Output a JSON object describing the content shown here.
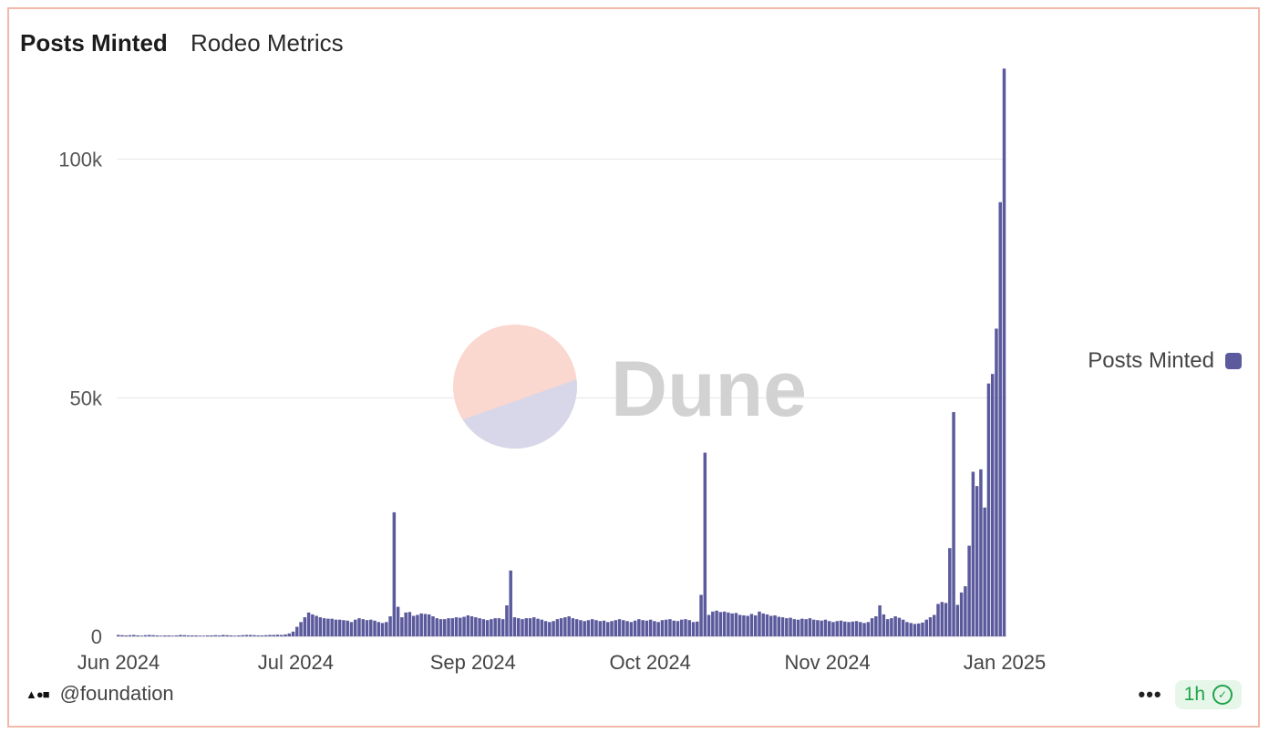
{
  "header": {
    "title": "Posts Minted",
    "subtitle": "Rodeo Metrics"
  },
  "legend": {
    "label": "Posts Minted",
    "color": "#5b5a9d"
  },
  "watermark": {
    "text": "Dune"
  },
  "footer": {
    "author": "@foundation",
    "menu_label": "•••",
    "refresh_label": "1h",
    "logo_icon": "dune-logo-icon"
  },
  "chart_data": {
    "type": "bar",
    "ylim": [
      0,
      120000
    ],
    "y_ticks": [
      0,
      50000,
      100000
    ],
    "y_tick_labels": [
      "0",
      "50k",
      "100k"
    ],
    "x_tick_labels": [
      "Jun 2024",
      "Jul 2024",
      "Sep 2024",
      "Oct 2024",
      "Nov 2024",
      "Jan 2025"
    ],
    "grid": true,
    "legend_position": "right",
    "series": [
      {
        "name": "Posts Minted",
        "color": "#5b5a9d",
        "values": [
          300,
          250,
          200,
          250,
          300,
          200,
          150,
          250,
          300,
          250,
          200,
          150,
          200,
          200,
          150,
          200,
          300,
          250,
          200,
          200,
          200,
          150,
          150,
          200,
          200,
          250,
          200,
          300,
          250,
          200,
          150,
          200,
          250,
          300,
          300,
          250,
          200,
          200,
          250,
          300,
          300,
          350,
          300,
          400,
          600,
          1000,
          2000,
          3000,
          4000,
          5000,
          4600,
          4300,
          4000,
          3800,
          3700,
          3700,
          3500,
          3500,
          3400,
          3300,
          3000,
          3500,
          3800,
          3600,
          3400,
          3500,
          3300,
          3000,
          2800,
          3000,
          4200,
          26000,
          6200,
          4000,
          5000,
          5100,
          4300,
          4500,
          4800,
          4700,
          4600,
          4200,
          3800,
          3600,
          3600,
          3800,
          3800,
          4000,
          3900,
          4100,
          4400,
          4200,
          4000,
          3800,
          3600,
          3400,
          3600,
          3800,
          3800,
          3600,
          6500,
          13800,
          4000,
          3800,
          3600,
          3800,
          3800,
          4000,
          3700,
          3500,
          3200,
          3000,
          3200,
          3600,
          3800,
          4000,
          4200,
          3800,
          3600,
          3400,
          3200,
          3400,
          3600,
          3400,
          3200,
          3300,
          3000,
          3200,
          3400,
          3600,
          3400,
          3200,
          3000,
          3300,
          3600,
          3400,
          3300,
          3500,
          3200,
          3000,
          3400,
          3500,
          3600,
          3300,
          3200,
          3500,
          3600,
          3400,
          3000,
          3100,
          8700,
          38500,
          4500,
          5200,
          5400,
          5100,
          5200,
          5000,
          4800,
          4900,
          4500,
          4400,
          4300,
          4700,
          4400,
          5200,
          4800,
          4600,
          4300,
          4400,
          4100,
          4000,
          3800,
          3900,
          3600,
          3500,
          3700,
          3600,
          3800,
          3500,
          3400,
          3300,
          3500,
          3200,
          3000,
          3200,
          3300,
          3100,
          3000,
          3100,
          3200,
          3000,
          2800,
          3000,
          3800,
          4200,
          6500,
          4600,
          3600,
          3800,
          4200,
          3900,
          3500,
          3000,
          2800,
          2600,
          2700,
          2900,
          3500,
          4000,
          4500,
          6800,
          7200,
          7000,
          18500,
          47000,
          6600,
          9200,
          10500,
          19000,
          34500,
          31500,
          35000,
          27000,
          53000,
          55000,
          64500,
          91000,
          119000
        ]
      }
    ]
  }
}
